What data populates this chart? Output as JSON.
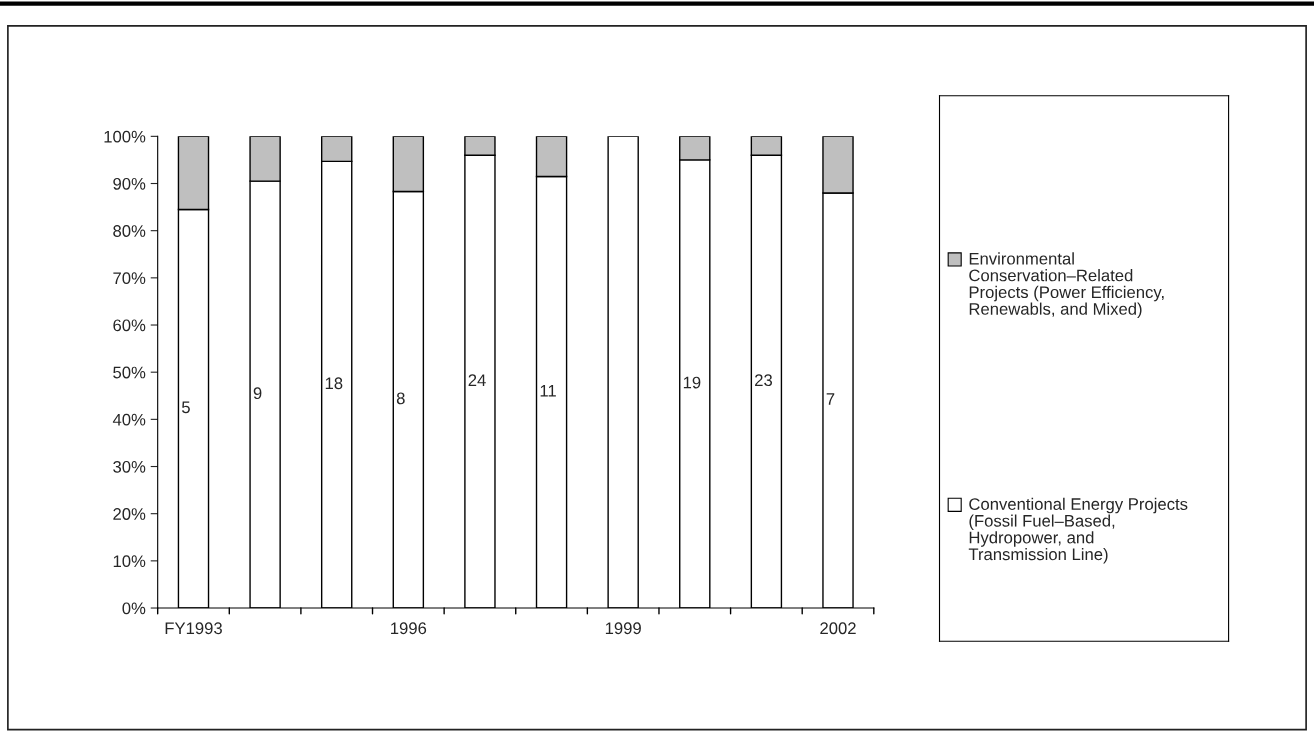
{
  "chart_data": {
    "type": "bar",
    "stacked": true,
    "categories": [
      "FY1993",
      null,
      null,
      "1996",
      null,
      null,
      "1999",
      null,
      null,
      "2002"
    ],
    "series": [
      {
        "name": "Conventional Energy Projects (Fossil Fuel–Based, Hydropower, and Transmission Line)",
        "color": "#ffffff",
        "values": [
          84.5,
          90.5,
          94.7,
          88.3,
          96,
          91.5,
          100,
          95,
          96,
          88
        ]
      },
      {
        "name": "Environmental Conservation–Related Projects (Power Efficiency, Renewabls, and Mixed)",
        "color": "#bfbfbf",
        "values": [
          15.5,
          9.5,
          5.3,
          11.7,
          4,
          8.5,
          0,
          5,
          4,
          12
        ]
      }
    ],
    "ylim": [
      0,
      100
    ],
    "yticks": [
      {
        "value": 0,
        "label": "0%"
      },
      {
        "value": 10,
        "label": "10%"
      },
      {
        "value": 20,
        "label": "20%"
      },
      {
        "value": 30,
        "label": "30%"
      },
      {
        "value": 40,
        "label": "40%"
      },
      {
        "value": 50,
        "label": "50%"
      },
      {
        "value": 60,
        "label": "60%"
      },
      {
        "value": 70,
        "label": "70%"
      },
      {
        "value": 80,
        "label": "80%"
      },
      {
        "value": 90,
        "label": "90%"
      },
      {
        "value": 100,
        "label": "100%"
      }
    ],
    "annotations": [
      "5",
      "9",
      "18",
      "8",
      "24",
      "11",
      "19",
      "23",
      "7"
    ],
    "grid": false,
    "legend": "right"
  }
}
